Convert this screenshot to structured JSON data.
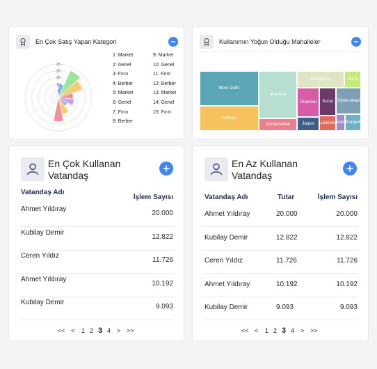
{
  "top_left": {
    "title": "En Çok Satış Yapan Kategori",
    "collapse_icon": "minus-icon",
    "chart_data": {
      "type": "polar-area",
      "radial_ticks": [
        "25",
        "20",
        "15",
        "10",
        "5"
      ],
      "rmax": 25,
      "slices": [
        {
          "label": "1: Market",
          "value": 10,
          "color": "#6ea8f0"
        },
        {
          "label": "2: Genel",
          "value": 22,
          "color": "#8de08f"
        },
        {
          "label": "3: Fırın",
          "value": 19,
          "color": "#f6c35c"
        },
        {
          "label": "4: Berber",
          "value": 11,
          "color": "#f07d8e"
        },
        {
          "label": "5: Market",
          "value": 12,
          "color": "#c78ef0"
        },
        {
          "label": "6: Genel",
          "value": 8,
          "color": "#8aa8f5"
        },
        {
          "label": "7: Fırın",
          "value": 13,
          "color": "#f6c35c"
        },
        {
          "label": "8: Berber",
          "value": 18,
          "color": "#f07d8e"
        },
        {
          "label": "9: Market",
          "value": 0,
          "color": "#6ea8f0"
        },
        {
          "label": "10: Genel",
          "value": 0,
          "color": "#8de08f"
        },
        {
          "label": "11: Fırın",
          "value": 0,
          "color": "#f6c35c"
        },
        {
          "label": "12: Berber",
          "value": 0,
          "color": "#f07d8e"
        },
        {
          "label": "13: Market",
          "value": 0,
          "color": "#c78ef0"
        },
        {
          "label": "14: Genel",
          "value": 0,
          "color": "#8aa8f5"
        },
        {
          "label": "15: Fırın",
          "value": 0,
          "color": "#f6c35c"
        }
      ]
    }
  },
  "top_right": {
    "title": "Kullanımın Yoğun Olduğu Mahalleler",
    "collapse_icon": "minus-icon",
    "chart_data": {
      "type": "treemap",
      "cells": [
        {
          "name": "New Delhi",
          "color": "#5ba6b6"
        },
        {
          "name": "Kolkata",
          "color": "#f7c25c"
        },
        {
          "name": "Mumbai",
          "color": "#b6dfd1"
        },
        {
          "name": "Ahmedabad",
          "color": "#f07d8e"
        },
        {
          "name": "Bangalore",
          "color": "#dfe6c3"
        },
        {
          "name": "Pune",
          "color": "#c4ec7a"
        },
        {
          "name": "Chennai",
          "color": "#d95ba8"
        },
        {
          "name": "Surat",
          "color": "#6b3a6b"
        },
        {
          "name": "Hyderabad",
          "color": "#7f9fb5"
        },
        {
          "name": "Jaipur",
          "color": "#3f5f8a"
        },
        {
          "name": "Lucknow",
          "color": "#e26a5a"
        },
        {
          "name": "Kanpur",
          "color": "#9a8fc4"
        },
        {
          "name": "Kanpur",
          "color": "#6fb2c8"
        }
      ]
    }
  },
  "most": {
    "title": "En Çok Kullanan Vatandaş",
    "headers": {
      "name": "Vatandaş Adı",
      "count": "İşlem Sayısı"
    },
    "rows": [
      {
        "name": "Ahmet Yıldıray",
        "count": "20.000"
      },
      {
        "name": "Kubilay Demir",
        "count": "12.822"
      },
      {
        "name": "Ceren Yıldız",
        "count": "11.726"
      },
      {
        "name": "Ahmet Yıldıray",
        "count": "10.192"
      },
      {
        "name": "Kubilay Demir",
        "count": "9.093"
      }
    ],
    "pager": [
      "<<",
      "<",
      "1",
      "2",
      "3",
      "4",
      ">",
      ">>"
    ],
    "current_page": "3"
  },
  "least": {
    "title": "En Az Kullanan Vatandaş",
    "headers": {
      "name": "Vatandaş Adı",
      "amount": "Tutar",
      "count": "İşlem Sayısı"
    },
    "rows": [
      {
        "name": "Ahmet Yıldıray",
        "amount": "20.000",
        "count": "20.000"
      },
      {
        "name": "Kubilay Demir",
        "amount": "12.822",
        "count": "12.822"
      },
      {
        "name": "Ceren Yıldız",
        "amount": "11.726",
        "count": "11.726"
      },
      {
        "name": "Ahmet Yıldıray",
        "amount": "10.192",
        "count": "10.192"
      },
      {
        "name": "Kubilay Demir",
        "amount": "9.093",
        "count": "9.093"
      }
    ],
    "pager": [
      "<<",
      "<",
      "1",
      "2",
      "3",
      "4",
      ">",
      ">>"
    ],
    "current_page": "3"
  },
  "colors": {
    "accent": "#3f86f4",
    "header_text": "#1f2d5a"
  }
}
